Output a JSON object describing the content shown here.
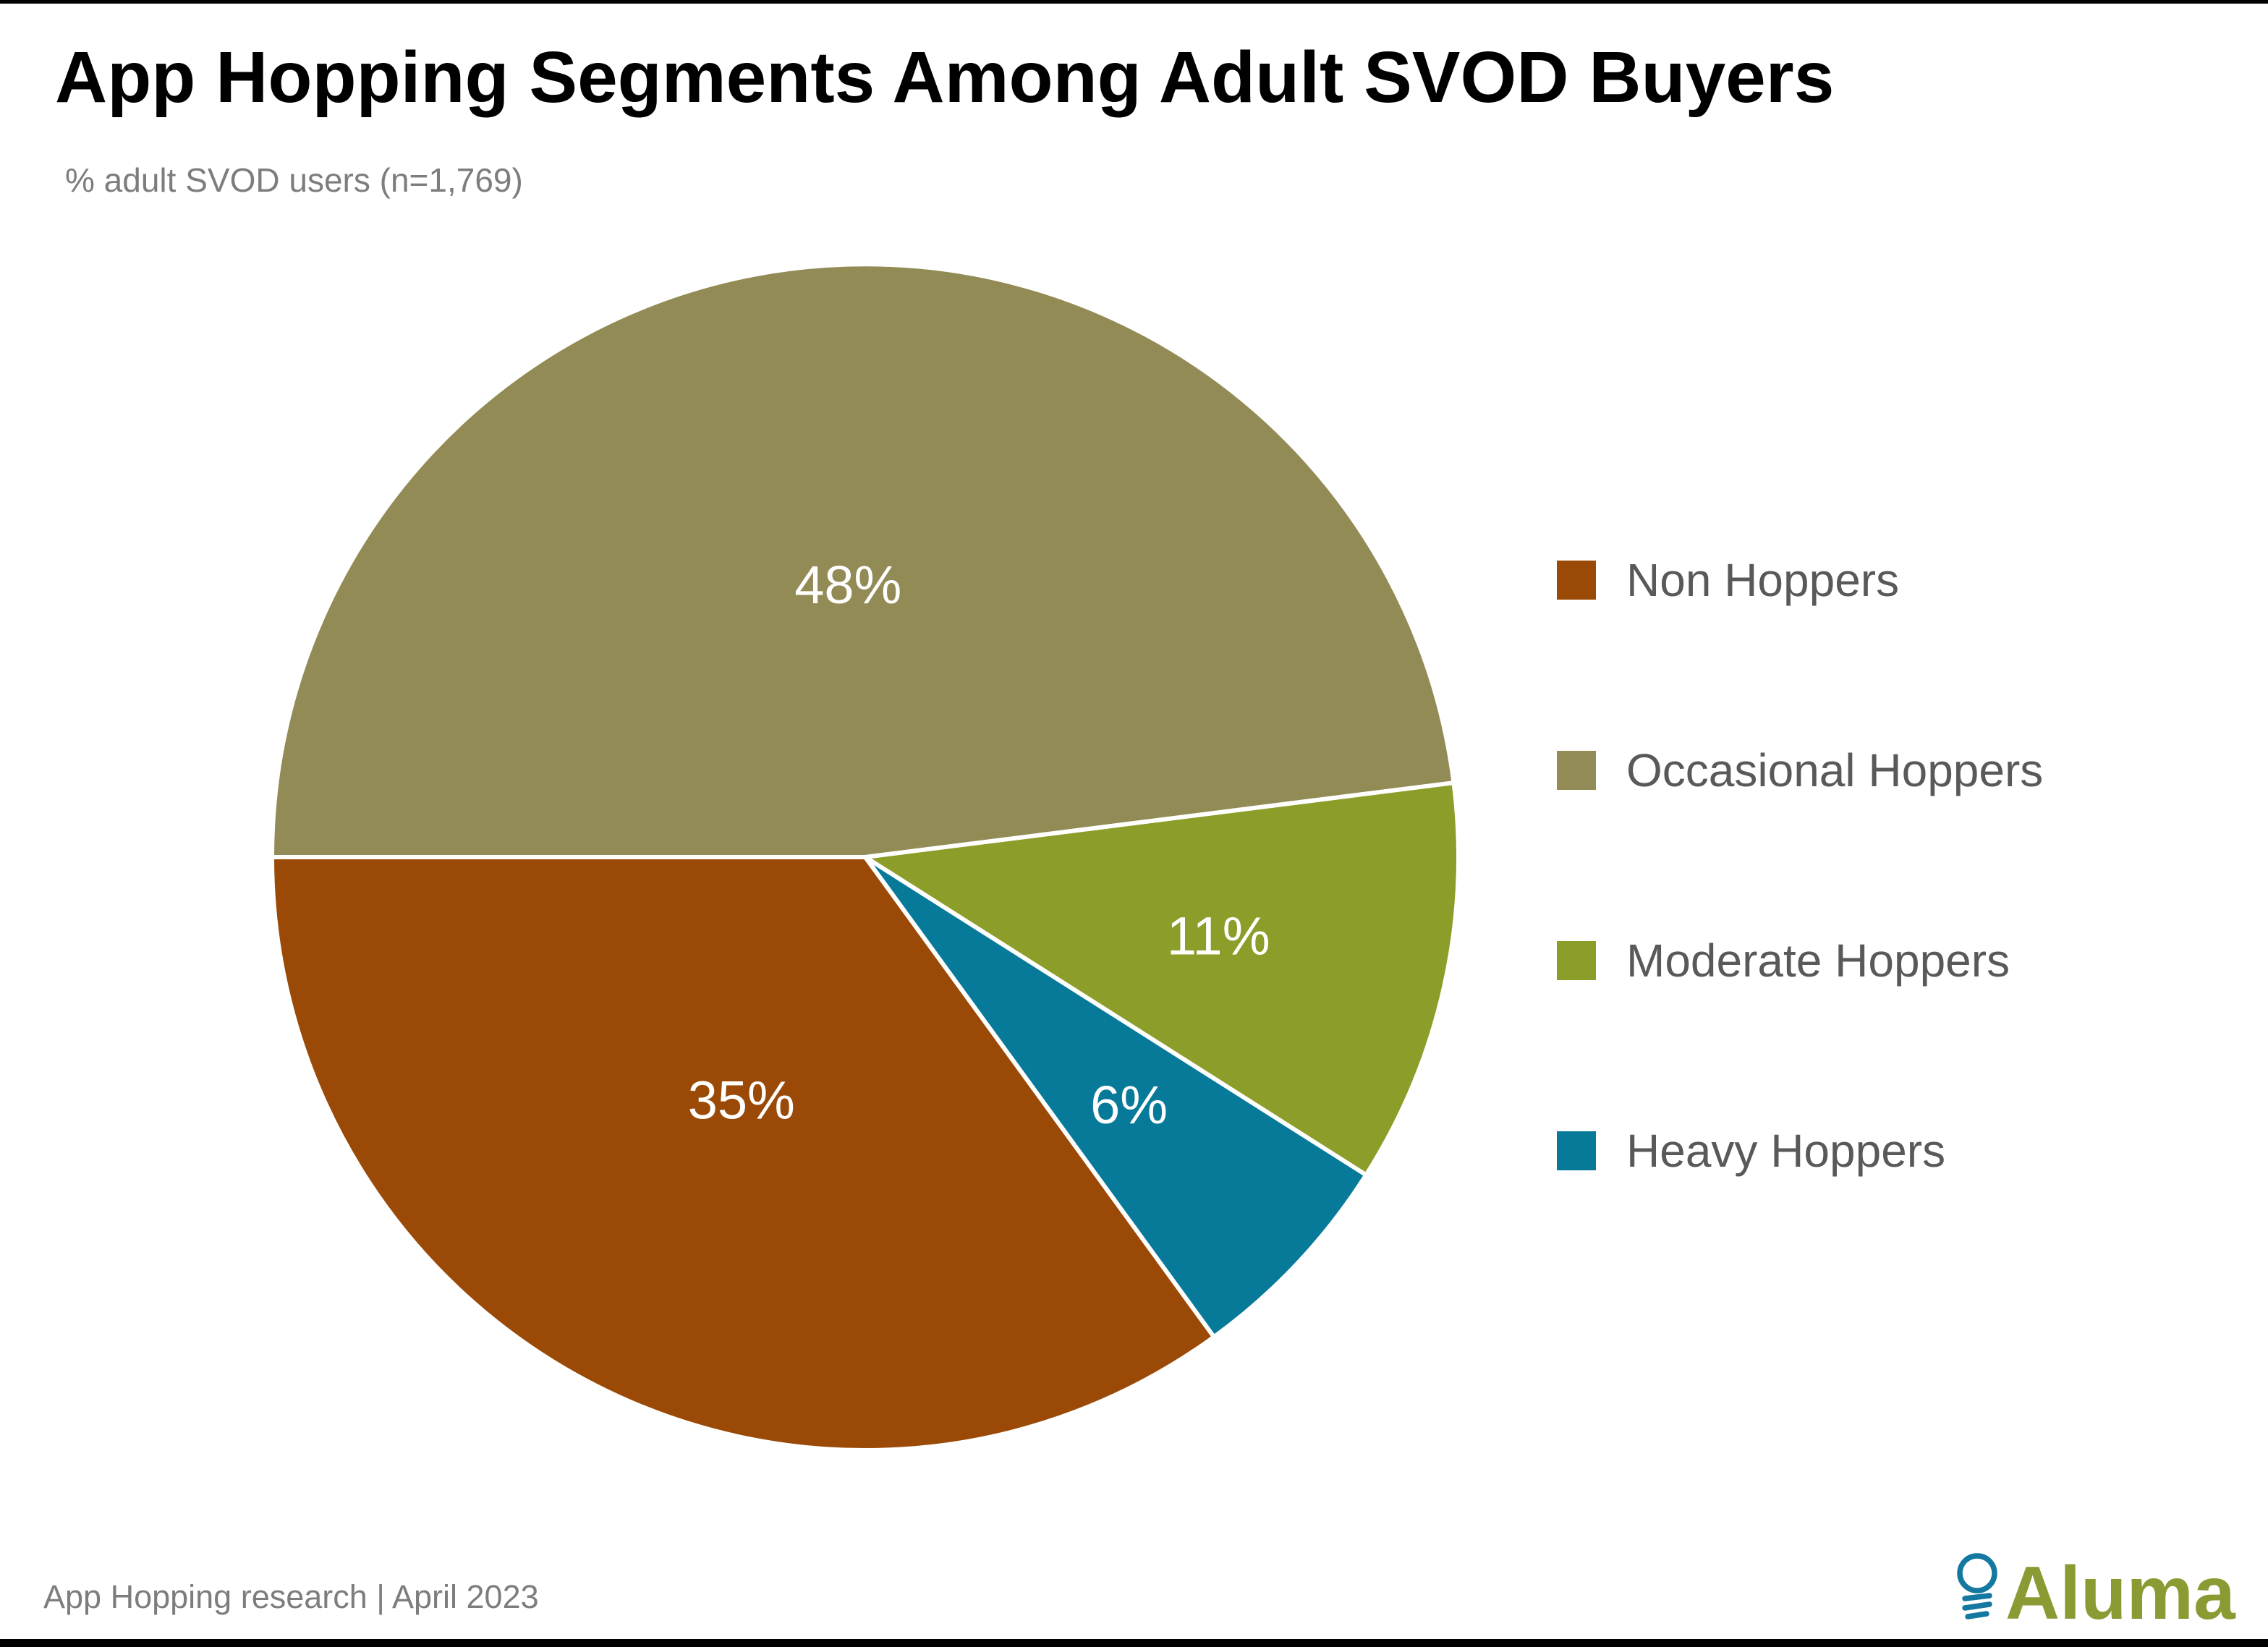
{
  "page": {
    "title": "App Hopping Segments Among Adult SVOD Buyers",
    "subtitle": "% adult SVOD users (n=1,769)",
    "source_note": "App Hopping research | April 2023"
  },
  "logo": {
    "text": "Aluma",
    "icon": "lightbulb-icon",
    "text_color": "#8B9A33",
    "icon_color": "#1478A0"
  },
  "colors": {
    "title": "#000000",
    "muted_text": "#7D7D7D",
    "legend_text": "#595959",
    "slice_label_text": "#FFFFFF",
    "background": "#FFFFFF",
    "border_bars": "#000000"
  },
  "chart_data": {
    "type": "pie",
    "title": "App Hopping Segments Among Adult SVOD Buyers",
    "subtitle": "% adult SVOD users (n=1,769)",
    "unit": "%",
    "categories": [
      "Non Hoppers",
      "Occasional Hoppers",
      "Moderate Hoppers",
      "Heavy Hoppers"
    ],
    "values": [
      35,
      48,
      11,
      6
    ],
    "labels": [
      "35%",
      "48%",
      "11%",
      "6%"
    ],
    "legend_position": "right",
    "grid": false,
    "start_angle_deg": 270,
    "direction": "clockwise",
    "slices": [
      {
        "label": "Occasional Hoppers",
        "value": 48,
        "display": "48%",
        "color": "#938B55"
      },
      {
        "label": "Moderate Hoppers",
        "value": 11,
        "display": "11%",
        "color": "#8C9D29"
      },
      {
        "label": "Heavy Hoppers",
        "value": 6,
        "display": "6%",
        "color": "#077A99"
      },
      {
        "label": "Non Hoppers",
        "value": 35,
        "display": "35%",
        "color": "#9A4A06"
      }
    ],
    "legend": [
      {
        "label": "Non Hoppers",
        "color": "#9A4A06"
      },
      {
        "label": "Occasional Hoppers",
        "color": "#938B55"
      },
      {
        "label": "Moderate Hoppers",
        "color": "#8C9D29"
      },
      {
        "label": "Heavy Hoppers",
        "color": "#077A99"
      }
    ]
  }
}
